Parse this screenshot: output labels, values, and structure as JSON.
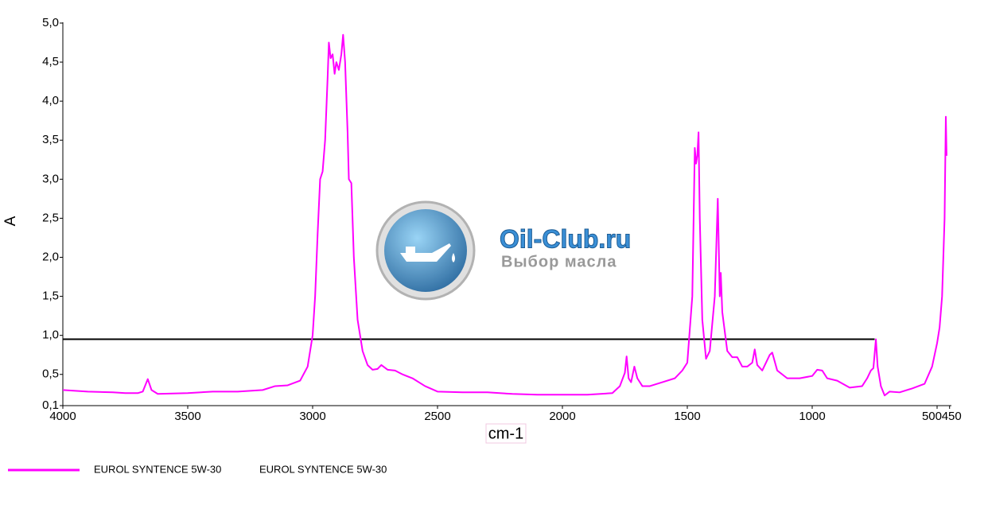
{
  "chart_data": {
    "type": "line",
    "xlabel": "cm-1",
    "ylabel": "A",
    "xlim": [
      4000,
      450
    ],
    "ylim": [
      0.1,
      5.0
    ],
    "xticks": [
      4000,
      3500,
      3000,
      2500,
      2000,
      1500,
      1000,
      500,
      450
    ],
    "yticks": [
      {
        "value": 0.1,
        "label": "0,1"
      },
      {
        "value": 0.5,
        "label": "0,5"
      },
      {
        "value": 1.0,
        "label": "1,0"
      },
      {
        "value": 1.5,
        "label": "1,5"
      },
      {
        "value": 2.0,
        "label": "2,0"
      },
      {
        "value": 2.5,
        "label": "2,5"
      },
      {
        "value": 3.0,
        "label": "3,0"
      },
      {
        "value": 3.5,
        "label": "3,5"
      },
      {
        "value": 4.0,
        "label": "4,0"
      },
      {
        "value": 4.5,
        "label": "4,5"
      },
      {
        "value": 5.0,
        "label": "5,0"
      }
    ],
    "reference_line": {
      "value": 0.95,
      "x": [
        4000,
        750
      ],
      "color": "#000000"
    },
    "legend_description": "EUROL SYNTENCE 5W-30",
    "watermark": {
      "title": "Oil-Club.ru",
      "subtitle": "Выбор масла"
    },
    "x": [
      4000,
      3900,
      3800,
      3750,
      3700,
      3680,
      3660,
      3645,
      3620,
      3500,
      3400,
      3300,
      3200,
      3150,
      3100,
      3050,
      3020,
      3000,
      2990,
      2980,
      2970,
      2960,
      2950,
      2940,
      2935,
      2928,
      2920,
      2912,
      2905,
      2895,
      2885,
      2878,
      2870,
      2860,
      2855,
      2845,
      2835,
      2820,
      2800,
      2780,
      2760,
      2740,
      2725,
      2700,
      2670,
      2640,
      2600,
      2550,
      2500,
      2400,
      2300,
      2200,
      2100,
      2000,
      1900,
      1800,
      1770,
      1750,
      1743,
      1735,
      1725,
      1712,
      1700,
      1680,
      1650,
      1600,
      1550,
      1520,
      1500,
      1480,
      1470,
      1465,
      1460,
      1455,
      1450,
      1440,
      1425,
      1410,
      1390,
      1378,
      1370,
      1366,
      1360,
      1340,
      1320,
      1300,
      1280,
      1260,
      1240,
      1230,
      1220,
      1200,
      1170,
      1160,
      1140,
      1100,
      1050,
      1000,
      980,
      960,
      940,
      900,
      850,
      800,
      780,
      765,
      755,
      745,
      738,
      725,
      710,
      690,
      650,
      600,
      550,
      520,
      500,
      490,
      480,
      470,
      465,
      462
    ],
    "series": [
      {
        "name": "EUROL SYNTENCE 5W-30",
        "color": "#ff00ff",
        "values": [
          0.3,
          0.28,
          0.27,
          0.26,
          0.26,
          0.28,
          0.44,
          0.3,
          0.25,
          0.26,
          0.28,
          0.28,
          0.3,
          0.35,
          0.36,
          0.42,
          0.6,
          1.0,
          1.5,
          2.3,
          3.0,
          3.1,
          3.5,
          4.3,
          4.75,
          4.55,
          4.6,
          4.35,
          4.5,
          4.4,
          4.6,
          4.85,
          4.5,
          3.6,
          3.0,
          2.95,
          2.0,
          1.2,
          0.8,
          0.62,
          0.56,
          0.57,
          0.62,
          0.56,
          0.55,
          0.5,
          0.45,
          0.35,
          0.28,
          0.27,
          0.27,
          0.25,
          0.24,
          0.24,
          0.24,
          0.26,
          0.35,
          0.52,
          0.73,
          0.45,
          0.4,
          0.6,
          0.45,
          0.35,
          0.35,
          0.4,
          0.45,
          0.55,
          0.65,
          1.5,
          3.4,
          3.2,
          3.3,
          3.6,
          2.5,
          1.2,
          0.7,
          0.8,
          1.5,
          2.75,
          1.5,
          1.8,
          1.3,
          0.8,
          0.72,
          0.72,
          0.6,
          0.6,
          0.65,
          0.82,
          0.62,
          0.55,
          0.75,
          0.78,
          0.55,
          0.45,
          0.45,
          0.48,
          0.56,
          0.55,
          0.45,
          0.42,
          0.33,
          0.35,
          0.45,
          0.55,
          0.58,
          0.95,
          0.6,
          0.35,
          0.23,
          0.28,
          0.27,
          0.32,
          0.38,
          0.6,
          0.9,
          1.1,
          1.5,
          2.5,
          3.8,
          3.3
        ]
      }
    ]
  }
}
